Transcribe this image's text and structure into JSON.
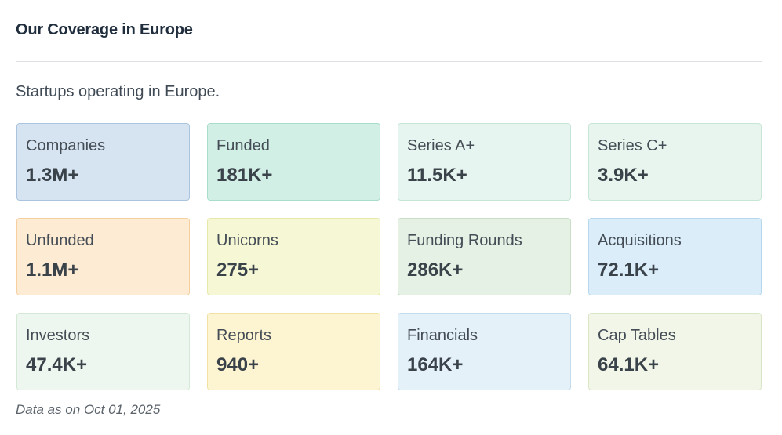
{
  "section": {
    "title": "Our Coverage in Europe",
    "subtitle": "Startups operating in Europe."
  },
  "cards": [
    {
      "label": "Companies",
      "value": "1.3M+",
      "bg": "#d6e4f1",
      "border": "#aac3de"
    },
    {
      "label": "Funded",
      "value": "181K+",
      "bg": "#d2efe6",
      "border": "#a8ddc9"
    },
    {
      "label": "Series A+",
      "value": "11.5K+",
      "bg": "#e6f5ef",
      "border": "#c5e6d6"
    },
    {
      "label": "Series C+",
      "value": "3.9K+",
      "bg": "#e7f5ee",
      "border": "#c7e6d5"
    },
    {
      "label": "Unfunded",
      "value": "1.1M+",
      "bg": "#fdebd3",
      "border": "#f6cfa0"
    },
    {
      "label": "Unicorns",
      "value": "275+",
      "bg": "#f6f7d5",
      "border": "#e6e9a9"
    },
    {
      "label": "Funding Rounds",
      "value": "286K+",
      "bg": "#e6f1e5",
      "border": "#c8dfc5"
    },
    {
      "label": "Acquisitions",
      "value": "72.1K+",
      "bg": "#dbedf9",
      "border": "#b6d8ef"
    },
    {
      "label": "Investors",
      "value": "47.4K+",
      "bg": "#eef7ef",
      "border": "#d3e9d5"
    },
    {
      "label": "Reports",
      "value": "940+",
      "bg": "#fdf4d2",
      "border": "#f1e2a3"
    },
    {
      "label": "Financials",
      "value": "164K+",
      "bg": "#e4f1f9",
      "border": "#c2dcee"
    },
    {
      "label": "Cap Tables",
      "value": "64.1K+",
      "bg": "#f1f6e8",
      "border": "#d9e6c6"
    }
  ],
  "footnote": "Data as on Oct 01, 2025"
}
